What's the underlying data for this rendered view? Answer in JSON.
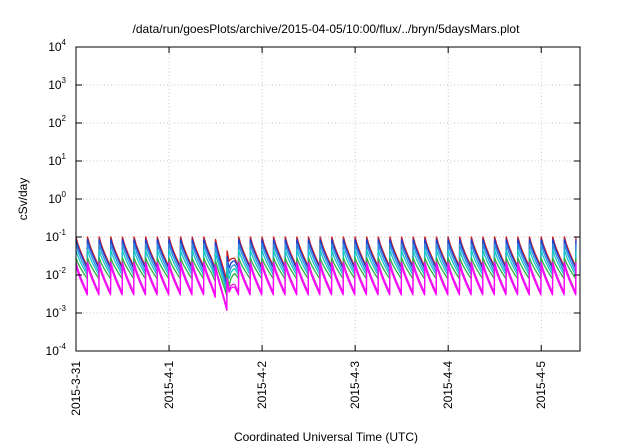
{
  "chart_data": {
    "type": "line",
    "title": "/data/run/goesPlots/archive/2015-04-05/10:00/flux/../bryn/5daysMars.plot",
    "xlabel": "Coordinated Universal Time (UTC)",
    "ylabel": "cSv/day",
    "yscale": "log",
    "ylim": [
      0.0001,
      10000
    ],
    "xlim": [
      "2015-03-31T00:00",
      "2015-04-05T10:00"
    ],
    "grid": true,
    "x_ticks": [
      "2015-3-31",
      "2015-4-1",
      "2015-4-2",
      "2015-4-3",
      "2015-4-4",
      "2015-4-5"
    ],
    "y_ticks": [
      {
        "base": "10",
        "exp": "-4",
        "value": 0.0001
      },
      {
        "base": "10",
        "exp": "-3",
        "value": 0.001
      },
      {
        "base": "10",
        "exp": "-2",
        "value": 0.01
      },
      {
        "base": "10",
        "exp": "-1",
        "value": 0.1
      },
      {
        "base": "10",
        "exp": "0",
        "value": 1
      },
      {
        "base": "10",
        "exp": "1",
        "value": 10
      },
      {
        "base": "10",
        "exp": "2",
        "value": 100
      },
      {
        "base": "10",
        "exp": "3",
        "value": 1000
      },
      {
        "base": "10",
        "exp": "4",
        "value": 10000
      }
    ],
    "series_pattern": {
      "cycle_hours": 3,
      "cycle_count": 43,
      "x_start": "2015-03-31T00:00",
      "drop_event": {
        "start": "2015-04-01T11:00",
        "minimum": "2015-04-01T15:30",
        "recovery": "2015-04-01T17:00"
      }
    },
    "series": [
      {
        "color": "#cc2020",
        "peak": 0.1,
        "trough": 0.017,
        "event_min": 0.006
      },
      {
        "color": "#1f3fd0",
        "peak": 0.085,
        "trough": 0.015,
        "event_min": 0.004
      },
      {
        "color": "#2f8fe0",
        "peak": 0.065,
        "trough": 0.012,
        "event_min": 0.003
      },
      {
        "color": "#14c8c8",
        "peak": 0.045,
        "trough": 0.01,
        "event_min": 0.0025
      },
      {
        "color": "#30b040",
        "peak": 0.028,
        "trough": 0.008,
        "event_min": 0.002
      },
      {
        "color": "#e020e0",
        "peak": 0.022,
        "trough": 0.0035,
        "event_min": 0.001
      },
      {
        "color": "#ff00ff",
        "peak": 0.018,
        "trough": 0.003,
        "event_min": 0.0009
      }
    ]
  }
}
